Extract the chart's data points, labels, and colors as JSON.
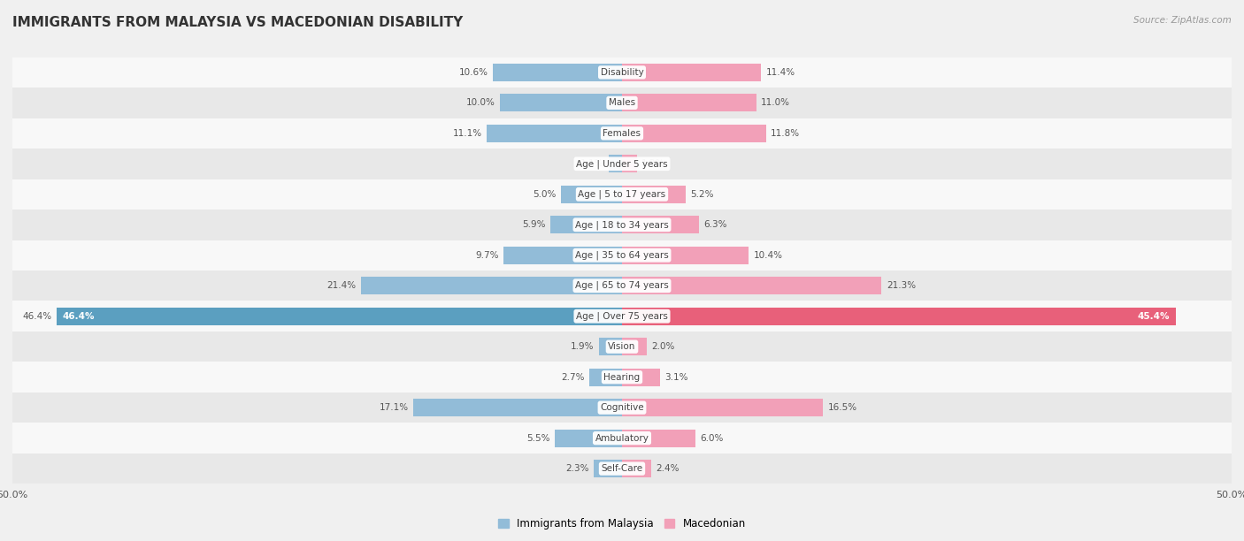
{
  "title": "IMMIGRANTS FROM MALAYSIA VS MACEDONIAN DISABILITY",
  "source": "Source: ZipAtlas.com",
  "categories": [
    "Disability",
    "Males",
    "Females",
    "Age | Under 5 years",
    "Age | 5 to 17 years",
    "Age | 18 to 34 years",
    "Age | 35 to 64 years",
    "Age | 65 to 74 years",
    "Age | Over 75 years",
    "Vision",
    "Hearing",
    "Cognitive",
    "Ambulatory",
    "Self-Care"
  ],
  "left_values": [
    10.6,
    10.0,
    11.1,
    1.1,
    5.0,
    5.9,
    9.7,
    21.4,
    46.4,
    1.9,
    2.7,
    17.1,
    5.5,
    2.3
  ],
  "right_values": [
    11.4,
    11.0,
    11.8,
    1.2,
    5.2,
    6.3,
    10.4,
    21.3,
    45.4,
    2.0,
    3.1,
    16.5,
    6.0,
    2.4
  ],
  "left_color": "#92bcd8",
  "right_color": "#f2a0b8",
  "left_color_large": "#5b9fc0",
  "right_color_large": "#e8607a",
  "axis_max": 50.0,
  "background_color": "#f0f0f0",
  "row_color_even": "#f8f8f8",
  "row_color_odd": "#e8e8e8",
  "title_fontsize": 11,
  "label_fontsize": 7.5,
  "value_fontsize": 7.5,
  "legend_label_left": "Immigrants from Malaysia",
  "legend_label_right": "Macedonian"
}
